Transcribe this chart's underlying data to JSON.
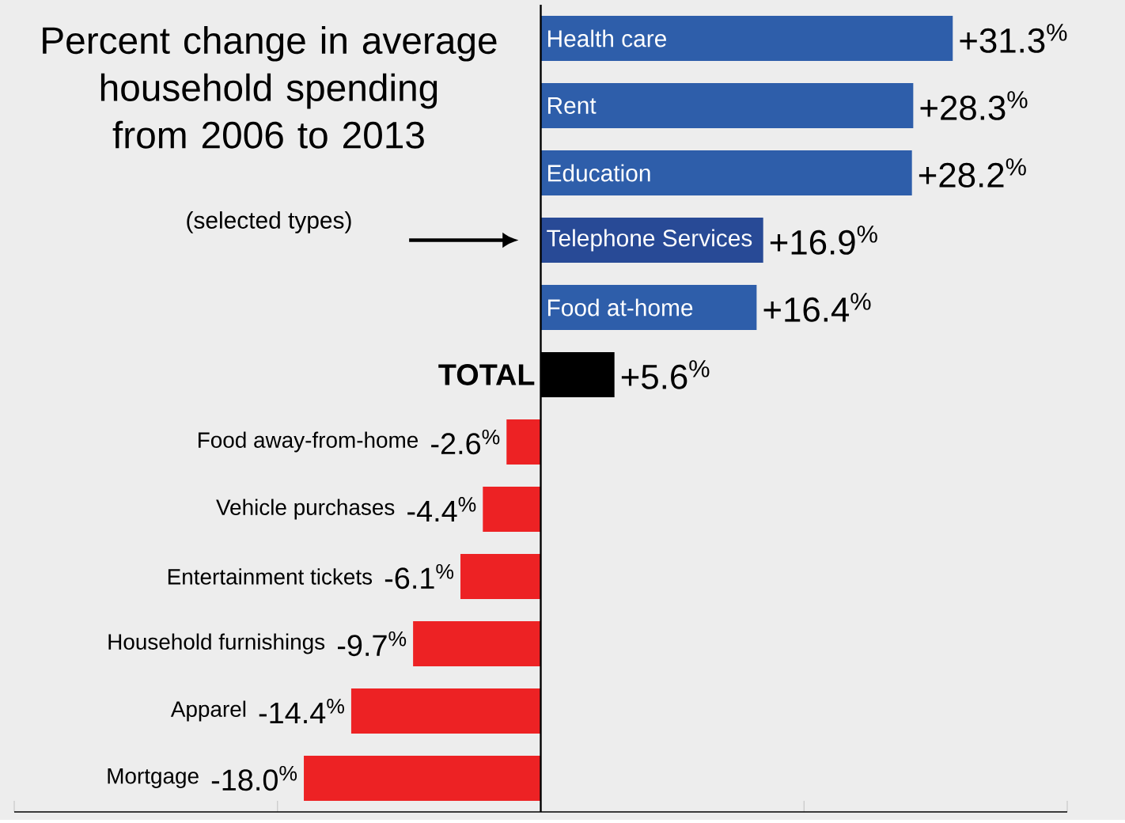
{
  "chart_data": {
    "type": "bar",
    "orientation": "horizontal",
    "title": "Percent change in average household spending from 2006 to 2013",
    "subtitle": "(selected types)",
    "categories": [
      "Health care",
      "Rent",
      "Education",
      "Telephone Services",
      "Food at-home",
      "TOTAL",
      "Food away-from-home",
      "Vehicle purchases",
      "Entertainment tickets",
      "Household furnishings",
      "Apparel",
      "Mortgage"
    ],
    "values": [
      31.3,
      28.3,
      28.2,
      16.9,
      16.4,
      5.6,
      -2.6,
      -4.4,
      -6.1,
      -9.7,
      -14.4,
      -18.0
    ],
    "value_labels": [
      "+31.3$^{%}$",
      "+28.3$^{%}$",
      "+28.2$^{%}$",
      "+16.9$^{%}$",
      "+16.4$^{%}$",
      "+5.6$^{%}$",
      "-2.6$^{%}$",
      "-4.4$^{%}$",
      "-6.1$^{%}$",
      "-9.7$^{%}$",
      "-14.4$^{%}$",
      "-18.0$^{%}$"
    ],
    "colors": [
      "#2e5eaa",
      "#2e5eaa",
      "#2e5eaa",
      "#284a96",
      "#2e5eaa",
      "#000000",
      "#ed2224",
      "#ed2224",
      "#ed2224",
      "#ed2224",
      "#ed2224",
      "#ed2224"
    ],
    "xlim": [
      -40,
      40
    ],
    "xticks": [
      {
        "value": -40,
        "label": null
      },
      {
        "value": -20,
        "label": null
      },
      {
        "value": 0,
        "label": null
      },
      {
        "value": 20,
        "label": null
      },
      {
        "value": 40,
        "label": null
      }
    ]
  }
}
